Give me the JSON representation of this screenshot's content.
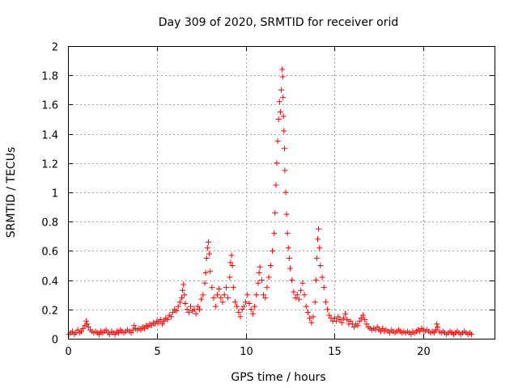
{
  "chart_data": {
    "type": "scatter",
    "title": "Day 309 of 2020, SRMTID for receiver orid",
    "xlabel": "GPS time / hours",
    "ylabel": "SRMTID / TECUs",
    "xlim": [
      0,
      24
    ],
    "ylim": [
      0,
      2
    ],
    "x_ticks": [
      0,
      5,
      10,
      15,
      20
    ],
    "y_ticks": [
      0,
      0.2,
      0.4,
      0.6,
      0.8,
      1,
      1.2,
      1.4,
      1.6,
      1.8,
      2
    ],
    "x_tick_labels": [
      "0",
      "5",
      "10",
      "15",
      "20"
    ],
    "y_tick_labels": [
      "0",
      "0.2",
      "0.4",
      "0.6",
      "0.8",
      "1",
      "1.2",
      "1.4",
      "1.6",
      "1.8",
      "2"
    ],
    "grid": true,
    "marker": "+",
    "color": "#ff0000",
    "series": [
      {
        "name": "SRMTID",
        "points": [
          [
            0.05,
            0.03
          ],
          [
            0.15,
            0.04
          ],
          [
            0.25,
            0.05
          ],
          [
            0.35,
            0.03
          ],
          [
            0.45,
            0.04
          ],
          [
            0.55,
            0.06
          ],
          [
            0.65,
            0.04
          ],
          [
            0.75,
            0.05
          ],
          [
            0.85,
            0.07
          ],
          [
            0.95,
            0.09
          ],
          [
            1.02,
            0.12
          ],
          [
            1.08,
            0.1
          ],
          [
            1.15,
            0.08
          ],
          [
            1.25,
            0.06
          ],
          [
            1.35,
            0.05
          ],
          [
            1.45,
            0.04
          ],
          [
            1.55,
            0.05
          ],
          [
            1.65,
            0.04
          ],
          [
            1.75,
            0.03
          ],
          [
            1.85,
            0.05
          ],
          [
            1.95,
            0.04
          ],
          [
            2.05,
            0.05
          ],
          [
            2.15,
            0.06
          ],
          [
            2.25,
            0.04
          ],
          [
            2.35,
            0.03
          ],
          [
            2.45,
            0.05
          ],
          [
            2.55,
            0.04
          ],
          [
            2.65,
            0.03
          ],
          [
            2.75,
            0.05
          ],
          [
            2.85,
            0.04
          ],
          [
            2.95,
            0.06
          ],
          [
            3.05,
            0.05
          ],
          [
            3.15,
            0.04
          ],
          [
            3.25,
            0.05
          ],
          [
            3.35,
            0.06
          ],
          [
            3.45,
            0.05
          ],
          [
            3.55,
            0.04
          ],
          [
            3.65,
            0.06
          ],
          [
            3.72,
            0.09
          ],
          [
            3.8,
            0.07
          ],
          [
            3.9,
            0.06
          ],
          [
            4.0,
            0.07
          ],
          [
            4.1,
            0.06
          ],
          [
            4.2,
            0.08
          ],
          [
            4.3,
            0.07
          ],
          [
            4.4,
            0.09
          ],
          [
            4.5,
            0.08
          ],
          [
            4.6,
            0.1
          ],
          [
            4.7,
            0.09
          ],
          [
            4.8,
            0.11
          ],
          [
            4.9,
            0.1
          ],
          [
            5.0,
            0.12
          ],
          [
            5.1,
            0.11
          ],
          [
            5.2,
            0.13
          ],
          [
            5.3,
            0.1
          ],
          [
            5.4,
            0.12
          ],
          [
            5.5,
            0.14
          ],
          [
            5.6,
            0.13
          ],
          [
            5.7,
            0.16
          ],
          [
            5.8,
            0.15
          ],
          [
            5.9,
            0.18
          ],
          [
            6.0,
            0.2
          ],
          [
            6.1,
            0.19
          ],
          [
            6.2,
            0.22
          ],
          [
            6.3,
            0.25
          ],
          [
            6.4,
            0.28
          ],
          [
            6.45,
            0.33
          ],
          [
            6.5,
            0.37
          ],
          [
            6.55,
            0.3
          ],
          [
            6.6,
            0.24
          ],
          [
            6.7,
            0.2
          ],
          [
            6.8,
            0.18
          ],
          [
            6.9,
            0.22
          ],
          [
            7.0,
            0.19
          ],
          [
            7.1,
            0.2
          ],
          [
            7.2,
            0.17
          ],
          [
            7.3,
            0.22
          ],
          [
            7.4,
            0.2
          ],
          [
            7.5,
            0.27
          ],
          [
            7.6,
            0.3
          ],
          [
            7.7,
            0.38
          ],
          [
            7.75,
            0.45
          ],
          [
            7.8,
            0.55
          ],
          [
            7.85,
            0.62
          ],
          [
            7.9,
            0.66
          ],
          [
            7.95,
            0.58
          ],
          [
            8.0,
            0.46
          ],
          [
            8.1,
            0.35
          ],
          [
            8.2,
            0.28
          ],
          [
            8.3,
            0.22
          ],
          [
            8.4,
            0.3
          ],
          [
            8.5,
            0.34
          ],
          [
            8.6,
            0.28
          ],
          [
            8.7,
            0.25
          ],
          [
            8.8,
            0.3
          ],
          [
            8.9,
            0.35
          ],
          [
            9.0,
            0.28
          ],
          [
            9.1,
            0.42
          ],
          [
            9.15,
            0.52
          ],
          [
            9.2,
            0.57
          ],
          [
            9.25,
            0.5
          ],
          [
            9.3,
            0.35
          ],
          [
            9.4,
            0.25
          ],
          [
            9.5,
            0.22
          ],
          [
            9.6,
            0.18
          ],
          [
            9.7,
            0.15
          ],
          [
            9.8,
            0.2
          ],
          [
            9.9,
            0.22
          ],
          [
            10.0,
            0.25
          ],
          [
            10.1,
            0.3
          ],
          [
            10.2,
            0.24
          ],
          [
            10.3,
            0.2
          ],
          [
            10.4,
            0.17
          ],
          [
            10.5,
            0.22
          ],
          [
            10.6,
            0.3
          ],
          [
            10.7,
            0.38
          ],
          [
            10.75,
            0.45
          ],
          [
            10.8,
            0.49
          ],
          [
            10.9,
            0.4
          ],
          [
            11.0,
            0.3
          ],
          [
            11.1,
            0.28
          ],
          [
            11.2,
            0.35
          ],
          [
            11.3,
            0.42
          ],
          [
            11.4,
            0.5
          ],
          [
            11.5,
            0.6
          ],
          [
            11.6,
            0.72
          ],
          [
            11.65,
            0.86
          ],
          [
            11.7,
            1.05
          ],
          [
            11.75,
            1.2
          ],
          [
            11.8,
            1.35
          ],
          [
            11.85,
            1.5
          ],
          [
            11.9,
            1.62
          ],
          [
            11.95,
            1.55
          ],
          [
            12.0,
            1.7
          ],
          [
            12.05,
            1.84
          ],
          [
            12.08,
            1.79
          ],
          [
            12.1,
            1.65
          ],
          [
            12.12,
            1.52
          ],
          [
            12.15,
            1.42
          ],
          [
            12.18,
            1.3
          ],
          [
            12.2,
            1.15
          ],
          [
            12.25,
            1.0
          ],
          [
            12.3,
            0.85
          ],
          [
            12.35,
            0.72
          ],
          [
            12.4,
            0.62
          ],
          [
            12.45,
            0.55
          ],
          [
            12.5,
            0.48
          ],
          [
            12.6,
            0.4
          ],
          [
            12.7,
            0.32
          ],
          [
            12.8,
            0.28
          ],
          [
            12.9,
            0.3
          ],
          [
            13.0,
            0.27
          ],
          [
            13.1,
            0.33
          ],
          [
            13.2,
            0.38
          ],
          [
            13.3,
            0.3
          ],
          [
            13.4,
            0.22
          ],
          [
            13.5,
            0.18
          ],
          [
            13.6,
            0.14
          ],
          [
            13.7,
            0.11
          ],
          [
            13.8,
            0.15
          ],
          [
            13.9,
            0.25
          ],
          [
            13.95,
            0.4
          ],
          [
            14.0,
            0.55
          ],
          [
            14.05,
            0.68
          ],
          [
            14.1,
            0.75
          ],
          [
            14.15,
            0.62
          ],
          [
            14.2,
            0.5
          ],
          [
            14.3,
            0.42
          ],
          [
            14.4,
            0.35
          ],
          [
            14.5,
            0.25
          ],
          [
            14.6,
            0.2
          ],
          [
            14.7,
            0.16
          ],
          [
            14.8,
            0.14
          ],
          [
            14.9,
            0.12
          ],
          [
            15.0,
            0.14
          ],
          [
            15.1,
            0.12
          ],
          [
            15.2,
            0.15
          ],
          [
            15.3,
            0.13
          ],
          [
            15.4,
            0.11
          ],
          [
            15.5,
            0.14
          ],
          [
            15.6,
            0.17
          ],
          [
            15.7,
            0.13
          ],
          [
            15.8,
            0.1
          ],
          [
            15.9,
            0.12
          ],
          [
            16.0,
            0.1
          ],
          [
            16.1,
            0.08
          ],
          [
            16.2,
            0.1
          ],
          [
            16.3,
            0.09
          ],
          [
            16.4,
            0.12
          ],
          [
            16.5,
            0.14
          ],
          [
            16.6,
            0.16
          ],
          [
            16.7,
            0.13
          ],
          [
            16.8,
            0.1
          ],
          [
            16.9,
            0.08
          ],
          [
            17.0,
            0.07
          ],
          [
            17.1,
            0.06
          ],
          [
            17.2,
            0.07
          ],
          [
            17.3,
            0.06
          ],
          [
            17.4,
            0.08
          ],
          [
            17.5,
            0.06
          ],
          [
            17.6,
            0.05
          ],
          [
            17.7,
            0.07
          ],
          [
            17.8,
            0.05
          ],
          [
            17.9,
            0.06
          ],
          [
            18.0,
            0.05
          ],
          [
            18.1,
            0.04
          ],
          [
            18.2,
            0.06
          ],
          [
            18.3,
            0.05
          ],
          [
            18.4,
            0.04
          ],
          [
            18.5,
            0.05
          ],
          [
            18.6,
            0.06
          ],
          [
            18.7,
            0.05
          ],
          [
            18.8,
            0.04
          ],
          [
            18.9,
            0.05
          ],
          [
            19.0,
            0.04
          ],
          [
            19.1,
            0.05
          ],
          [
            19.2,
            0.04
          ],
          [
            19.3,
            0.03
          ],
          [
            19.4,
            0.05
          ],
          [
            19.5,
            0.04
          ],
          [
            19.6,
            0.05
          ],
          [
            19.7,
            0.06
          ],
          [
            19.8,
            0.05
          ],
          [
            19.9,
            0.07
          ],
          [
            20.0,
            0.06
          ],
          [
            20.1,
            0.05
          ],
          [
            20.2,
            0.06
          ],
          [
            20.3,
            0.05
          ],
          [
            20.4,
            0.04
          ],
          [
            20.5,
            0.05
          ],
          [
            20.6,
            0.04
          ],
          [
            20.7,
            0.06
          ],
          [
            20.75,
            0.1
          ],
          [
            20.8,
            0.08
          ],
          [
            20.9,
            0.05
          ],
          [
            21.0,
            0.04
          ],
          [
            21.1,
            0.05
          ],
          [
            21.2,
            0.04
          ],
          [
            21.3,
            0.03
          ],
          [
            21.4,
            0.04
          ],
          [
            21.5,
            0.05
          ],
          [
            21.6,
            0.04
          ],
          [
            21.7,
            0.03
          ],
          [
            21.8,
            0.04
          ],
          [
            21.9,
            0.05
          ],
          [
            22.0,
            0.04
          ],
          [
            22.1,
            0.03
          ],
          [
            22.2,
            0.04
          ],
          [
            22.3,
            0.05
          ],
          [
            22.4,
            0.04
          ],
          [
            22.5,
            0.03
          ],
          [
            22.6,
            0.04
          ],
          [
            22.7,
            0.03
          ]
        ]
      }
    ]
  }
}
